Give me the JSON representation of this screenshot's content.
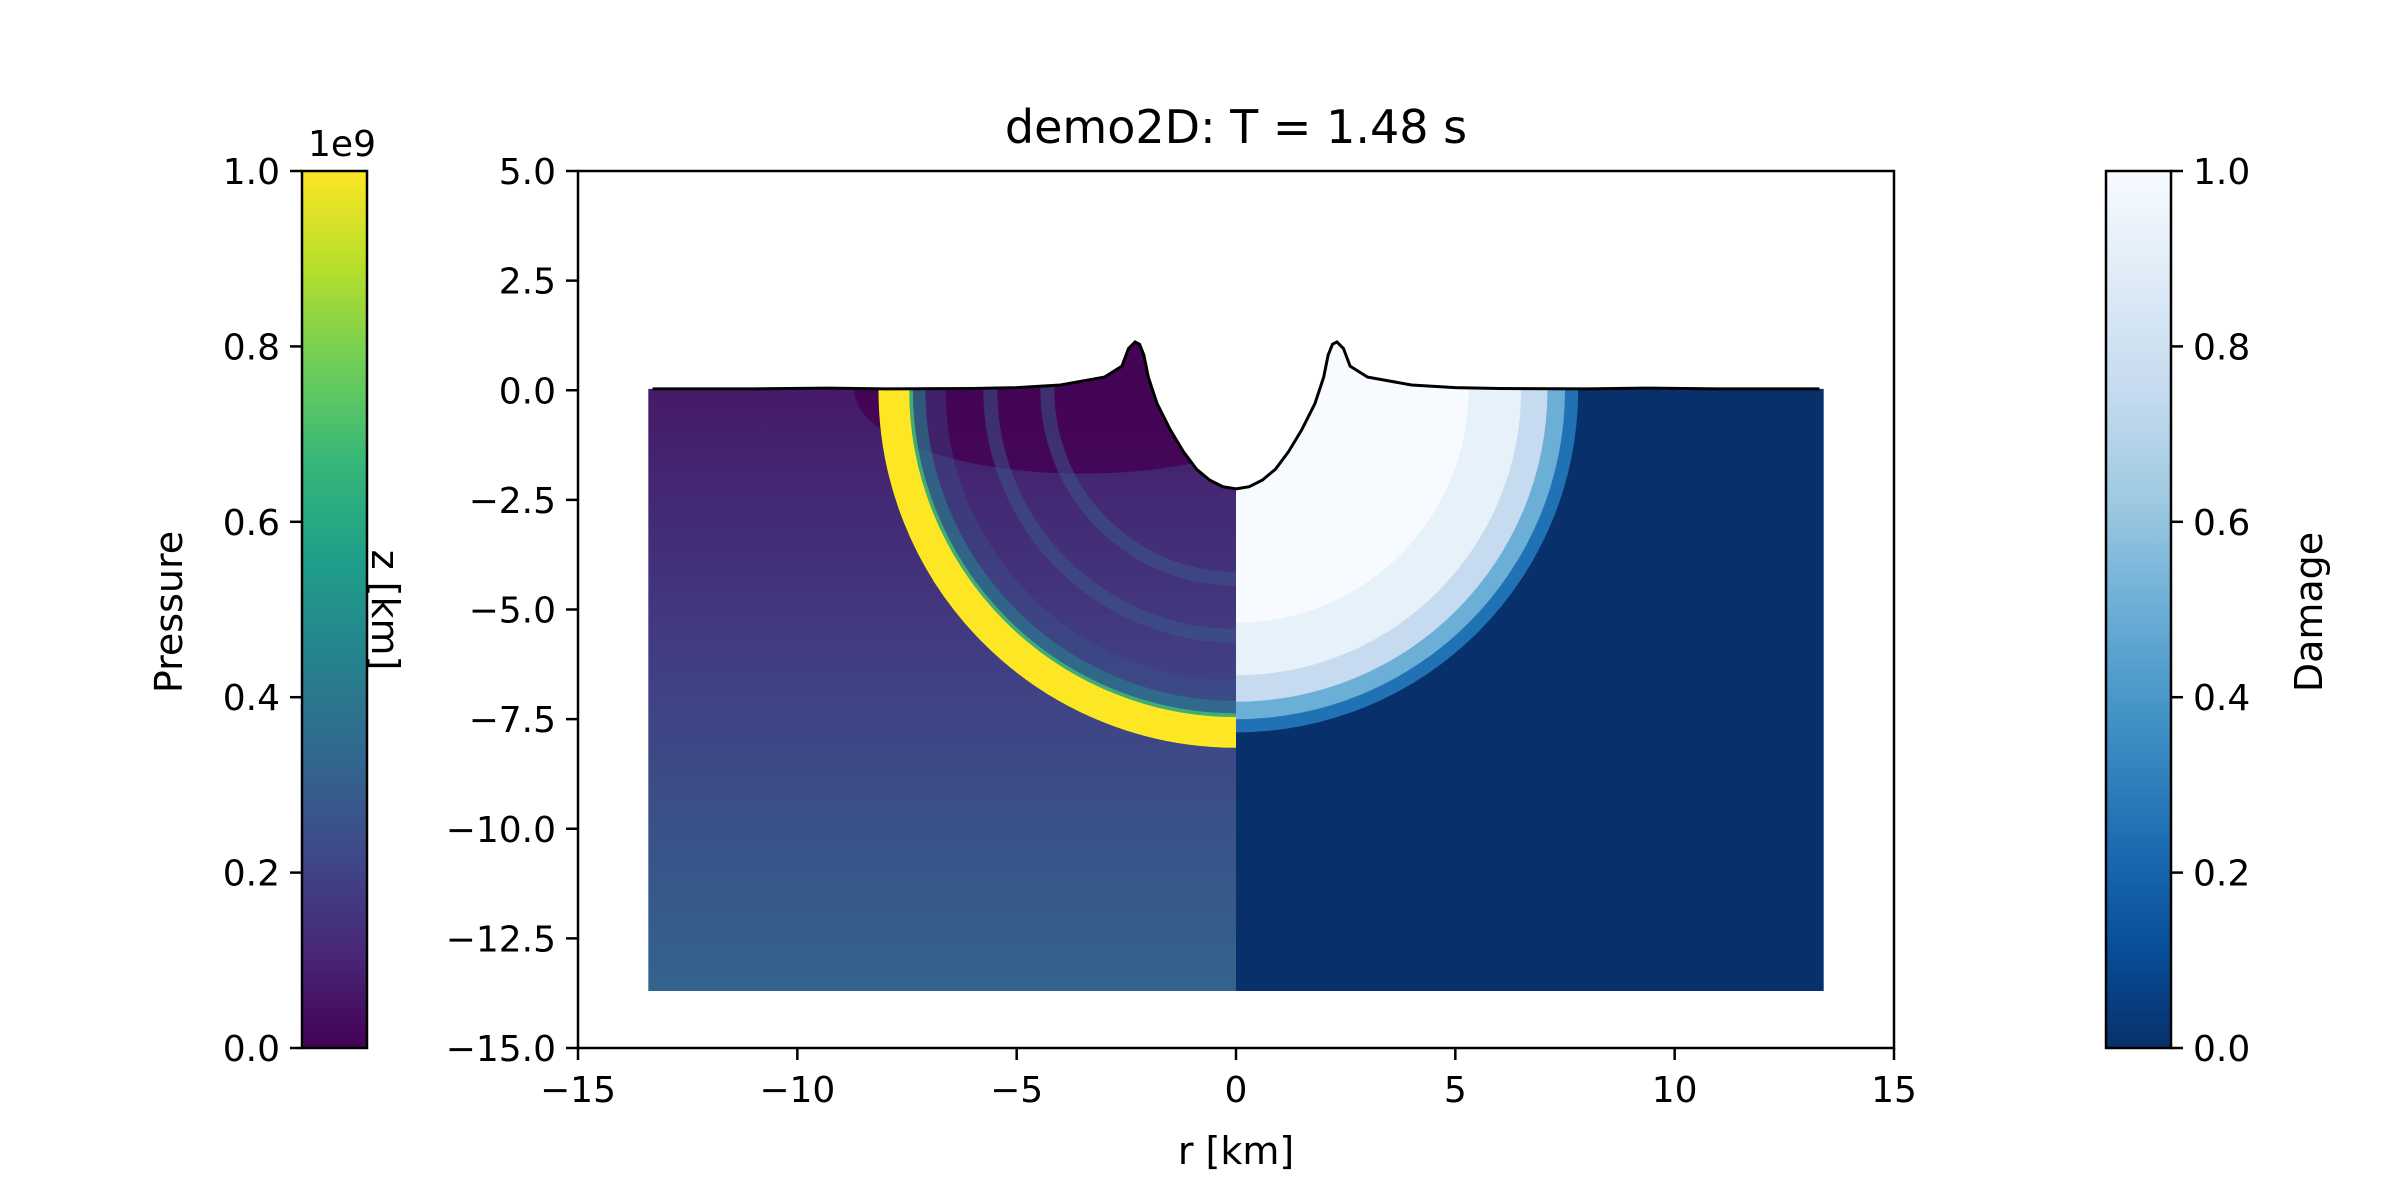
{
  "chart_data": {
    "type": "heatmap",
    "title": "demo2D: T =  1.48 s",
    "xlabel": "r [km]",
    "ylabel": "z [km]",
    "xlim": [
      -15,
      15
    ],
    "ylim": [
      -15,
      5
    ],
    "xticks": [
      "−15",
      "−10",
      "−5",
      "0",
      "5",
      "10",
      "15"
    ],
    "yticks": [
      "5.0",
      "2.5",
      "0.0",
      "−2.5",
      "−5.0",
      "−7.5",
      "−10.0",
      "−12.5",
      "−15.0"
    ],
    "domain": {
      "r_range": [
        -13.4,
        13.4
      ],
      "z_range": [
        -13.7,
        0.0
      ]
    },
    "left_field": {
      "name": "Pressure",
      "colormap": "viridis",
      "scale_note": "1e9",
      "range": [
        0.0,
        1.0
      ],
      "ticks": [
        "0.0",
        "0.2",
        "0.4",
        "0.6",
        "0.8",
        "1.0"
      ],
      "shock_front": {
        "radius_km": 7.8,
        "width_km": 0.7,
        "peak": 1.0
      },
      "background_top": 0.05,
      "background_bottom": 0.32
    },
    "right_field": {
      "name": "Damage",
      "colormap": "Blues_r",
      "range": [
        0.0,
        1.0
      ],
      "ticks": [
        "0.0",
        "0.2",
        "0.4",
        "0.6",
        "0.8",
        "1.0"
      ],
      "damaged_zone_radius_km": 7.5,
      "undamaged_value": 0.0
    },
    "crater_profile": {
      "r": [
        0.0,
        0.3,
        0.6,
        0.9,
        1.2,
        1.5,
        1.8,
        2.0,
        2.1,
        2.2,
        2.3,
        2.45,
        2.6,
        3.0,
        4.0,
        5.0,
        6.0,
        8.0,
        9.3,
        11.0,
        13.3
      ],
      "z": [
        -2.25,
        -2.2,
        -2.05,
        -1.8,
        -1.4,
        -0.9,
        -0.3,
        0.3,
        0.8,
        1.05,
        1.1,
        0.95,
        0.55,
        0.3,
        0.12,
        0.06,
        0.04,
        0.03,
        0.05,
        0.03,
        0.03
      ]
    },
    "colors": {
      "viridis": [
        "#440154",
        "#482878",
        "#3e4989",
        "#31688e",
        "#26828e",
        "#1f9e89",
        "#35b779",
        "#6ece58",
        "#b5de2b",
        "#fde725"
      ],
      "blues_r": [
        "#08306b",
        "#08519c",
        "#2171b5",
        "#4292c6",
        "#6baed6",
        "#9ecae1",
        "#c6dbef",
        "#deebf7",
        "#f7fbff"
      ]
    }
  }
}
